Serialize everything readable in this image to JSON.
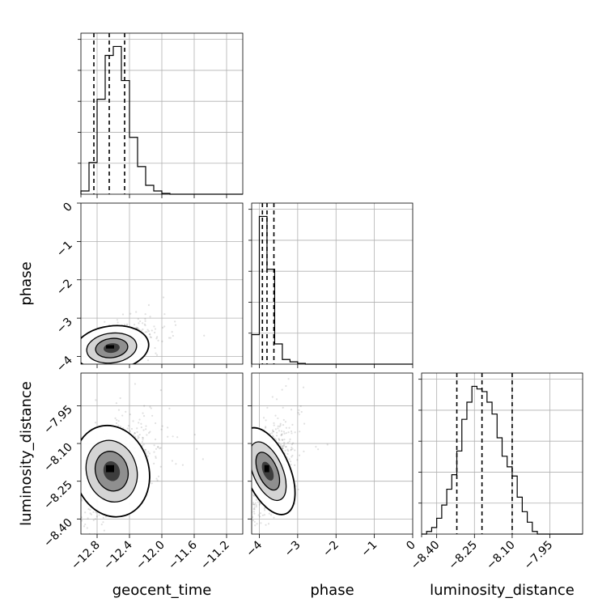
{
  "chart_data": {
    "type": "corner",
    "parameters": [
      "geocent_time",
      "phase",
      "luminosity_distance"
    ],
    "axes": {
      "geocent_time": {
        "lim": [
          -13.0,
          -11.0
        ],
        "ticks": [
          -12.8,
          -12.4,
          -12.0,
          -11.6,
          -11.2
        ],
        "tick_labels": [
          "−12.8",
          "−12.4",
          "−12.0",
          "−11.6",
          "−11.2"
        ]
      },
      "phase": {
        "lim": [
          -4.2,
          0.0
        ],
        "ticks": [
          -4,
          -3,
          -2,
          -1,
          0
        ],
        "tick_labels": [
          "−4",
          "−3",
          "−2",
          "−1",
          "0"
        ]
      },
      "luminosity_distance": {
        "lim": [
          -8.46,
          -7.82
        ],
        "ticks": [
          -8.4,
          -8.25,
          -8.1,
          -7.95
        ],
        "tick_labels": [
          "−8.40",
          "−8.25",
          "−8.10",
          "−7.95"
        ]
      }
    },
    "grid": true,
    "histograms": {
      "geocent_time": {
        "edges": [
          -13.0,
          -12.9,
          -12.8,
          -12.7,
          -12.6,
          -12.5,
          -12.4,
          -12.3,
          -12.2,
          -12.1,
          -12.0,
          -11.9,
          -11.8,
          -11.7,
          -11.6,
          -11.5,
          -11.4,
          -11.3,
          -11.2,
          -11.1,
          -11.0
        ],
        "counts": [
          4,
          39,
          117,
          171,
          182,
          140,
          70,
          34,
          11,
          4,
          1,
          0,
          0,
          0,
          0,
          0,
          0,
          0,
          0,
          0
        ],
        "quantiles": [
          -12.84,
          -12.65,
          -12.46
        ]
      },
      "phase": {
        "edges": [
          -4.2,
          -4.0,
          -3.8,
          -3.6,
          -3.4,
          -3.2,
          -3.0,
          -2.8,
          -2.6,
          -2.4,
          -2.2,
          -2.0,
          -1.8,
          -1.6,
          -1.4,
          -1.2,
          -1.0,
          -0.8,
          -0.6,
          -0.4,
          -0.2,
          0.0
        ],
        "counts": [
          38,
          190,
          122,
          26,
          6,
          3,
          1,
          0,
          0,
          0,
          0,
          0,
          0,
          0,
          0,
          0,
          0,
          0,
          0,
          0,
          0
        ],
        "quantiles": [
          -3.92,
          -3.8,
          -3.62
        ]
      },
      "luminosity_distance": {
        "edges": [
          -8.46,
          -8.44,
          -8.42,
          -8.4,
          -8.38,
          -8.36,
          -8.34,
          -8.32,
          -8.3,
          -8.28,
          -8.26,
          -8.24,
          -8.22,
          -8.2,
          -8.18,
          -8.16,
          -8.14,
          -8.12,
          -8.1,
          -8.08,
          -8.06,
          -8.04,
          -8.02,
          -8.0,
          -7.98,
          -7.96,
          -7.94,
          -7.92,
          -7.9,
          -7.88,
          -7.86,
          -7.84,
          -7.82
        ],
        "counts": [
          0,
          2,
          5,
          12,
          22,
          34,
          45,
          63,
          87,
          100,
          112,
          110,
          108,
          100,
          91,
          73,
          59,
          51,
          44,
          28,
          17,
          9,
          2,
          0,
          0,
          0,
          0,
          0,
          0,
          0,
          0,
          0
        ],
        "quantiles": [
          -8.32,
          -8.22,
          -8.1
        ]
      }
    },
    "pairs": [
      {
        "x": "geocent_time",
        "y": "phase",
        "mean": [
          -12.62,
          -3.78
        ],
        "sd": [
          0.2,
          0.25
        ],
        "rho": 0.45
      },
      {
        "x": "geocent_time",
        "y": "luminosity_distance",
        "mean": [
          -12.62,
          -8.21
        ],
        "sd": [
          0.2,
          0.08
        ],
        "rho": 0.5
      },
      {
        "x": "phase",
        "y": "luminosity_distance",
        "mean": [
          -3.78,
          -8.21
        ],
        "sd": [
          0.25,
          0.08
        ],
        "rho": 0.5
      }
    ]
  }
}
